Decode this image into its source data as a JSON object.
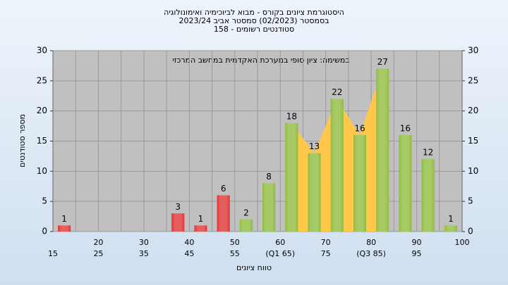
{
  "chart_data": {
    "type": "bar",
    "title": [
      "היסטוגרמת ציונים בקורס - מבוא לביוכימיה ואימונולוגיה",
      "בסמסטר  (02/2023)  סמסטר אביב  2023/24",
      "סטודנטים רשומים - 158"
    ],
    "annotation": "במשימה: ציון סופי במערכת האקדמית במחשב המרכזי",
    "x_label": "טווח ציונים",
    "y_label": "מספר סטודנטים",
    "categories": [
      "15",
      "20",
      "25",
      "30",
      "35",
      "40",
      "45",
      "50",
      "55",
      "60",
      "(Q1 65)",
      "70",
      "75",
      "80",
      "(Q3 85)",
      "90",
      "95",
      "100"
    ],
    "values": [
      1,
      0,
      0,
      0,
      0,
      3,
      1,
      6,
      2,
      8,
      18,
      13,
      22,
      16,
      27,
      16,
      12,
      1
    ],
    "colors": [
      "#e03030",
      "#e03030",
      "#e03030",
      "#e03030",
      "#e03030",
      "#e03030",
      "#e03030",
      "#e03030",
      "#8dbb3a",
      "#8dbb3a",
      "#8dbb3a",
      "#8dbb3a",
      "#8dbb3a",
      "#8dbb3a",
      "#8dbb3a",
      "#8dbb3a",
      "#8dbb3a",
      "#8dbb3a"
    ],
    "highlight_color": "#ffc84a",
    "ylim": [
      0,
      30
    ],
    "yticks": [
      0,
      5,
      10,
      15,
      20,
      25,
      30
    ],
    "y2lim": [
      0,
      30
    ],
    "y2ticks": [
      0,
      5,
      10,
      15,
      20,
      25,
      30
    ],
    "grid": true
  }
}
